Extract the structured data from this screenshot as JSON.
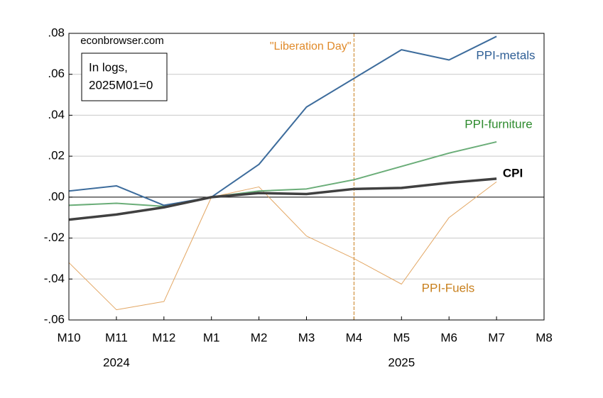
{
  "chart_data": {
    "type": "line",
    "categories": [
      "M10",
      "M11",
      "M12",
      "M1",
      "M2",
      "M3",
      "M4",
      "M5",
      "M6",
      "M7",
      "M8"
    ],
    "year_labels": [
      "2024",
      "2025"
    ],
    "source": "econbrowser.com",
    "note_lines": [
      "In logs,",
      "2025M01=0"
    ],
    "annotation": "\"Liberation Day\"",
    "vline": "M4",
    "ylim": [
      -0.06,
      0.08
    ],
    "yticks": [
      {
        "value": -0.06,
        "label": "-.06"
      },
      {
        "value": -0.04,
        "label": "-.04"
      },
      {
        "value": -0.02,
        "label": "-.02"
      },
      {
        "value": 0,
        "label": ".00"
      },
      {
        "value": 0.02,
        "label": ".02"
      },
      {
        "value": 0.04,
        "label": ".04"
      },
      {
        "value": 0.06,
        "label": ".06"
      },
      {
        "value": 0.08,
        "label": ".08"
      }
    ],
    "grid": true,
    "series": [
      {
        "name": "PPI-metals",
        "color": "#3d6c9c",
        "values": [
          0.003,
          0.0055,
          -0.004,
          0,
          0.016,
          0.044,
          0.058,
          0.072,
          0.067,
          0.0785,
          null
        ]
      },
      {
        "name": "PPI-furniture",
        "color": "#6aad78",
        "values": [
          -0.004,
          -0.003,
          -0.0045,
          0,
          0.003,
          0.004,
          0.0085,
          0.015,
          0.0215,
          0.027,
          null
        ]
      },
      {
        "name": "CPI",
        "color": "#404040",
        "values": [
          -0.011,
          -0.0085,
          -0.005,
          0,
          0.002,
          0.0015,
          0.004,
          0.0045,
          0.007,
          0.009,
          null
        ]
      },
      {
        "name": "PPI-Fuels",
        "color": "#e3a764",
        "values": [
          -0.032,
          -0.055,
          -0.051,
          0,
          0.005,
          -0.019,
          -0.03,
          -0.0425,
          -0.01,
          0.0075,
          null
        ]
      }
    ]
  }
}
